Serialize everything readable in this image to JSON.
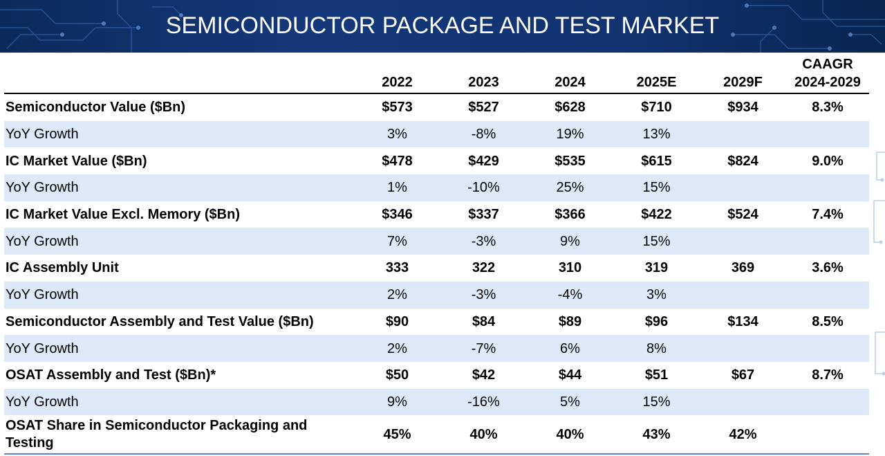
{
  "title": "SEMICONDUCTOR PACKAGE AND TEST MARKET",
  "colors": {
    "banner": "#14387a",
    "growth_row": "#dde9f8",
    "bottom_rule": "#5c87c4"
  },
  "columns": [
    "2022",
    "2023",
    "2024",
    "2025E",
    "2029F"
  ],
  "cagr_header": {
    "line1": "CAAGR",
    "line2": "2024-2029"
  },
  "rows": [
    {
      "label": "Semiconductor Value ($Bn)",
      "values": [
        "$573",
        "$527",
        "$628",
        "$710",
        "$934"
      ],
      "cagr": "8.3%"
    },
    {
      "label": "YoY Growth",
      "values": [
        "3%",
        "-8%",
        "19%",
        "13%",
        ""
      ],
      "cagr": ""
    },
    {
      "label": "IC Market Value ($Bn)",
      "values": [
        "$478",
        "$429",
        "$535",
        "$615",
        "$824"
      ],
      "cagr": "9.0%"
    },
    {
      "label": "YoY Growth",
      "values": [
        "1%",
        "-10%",
        "25%",
        "15%",
        ""
      ],
      "cagr": ""
    },
    {
      "label": "IC Market Value Excl. Memory ($Bn)",
      "values": [
        "$346",
        "$337",
        "$366",
        "$422",
        "$524"
      ],
      "cagr": "7.4%"
    },
    {
      "label": "YoY Growth",
      "values": [
        "7%",
        "-3%",
        "9%",
        "15%",
        ""
      ],
      "cagr": ""
    },
    {
      "label": "IC Assembly Unit",
      "values": [
        "333",
        "322",
        "310",
        "319",
        "369"
      ],
      "cagr": "3.6%"
    },
    {
      "label": "YoY Growth",
      "values": [
        "2%",
        "-3%",
        "-4%",
        "3%",
        ""
      ],
      "cagr": ""
    },
    {
      "label": "Semiconductor Assembly and Test Value ($Bn)",
      "values": [
        "$90",
        "$84",
        "$89",
        "$96",
        "$134"
      ],
      "cagr": "8.5%"
    },
    {
      "label": "YoY Growth",
      "values": [
        "2%",
        "-7%",
        "6%",
        "8%",
        ""
      ],
      "cagr": ""
    },
    {
      "label": "OSAT Assembly and Test ($Bn)*",
      "values": [
        "$50",
        "$42",
        "$44",
        "$51",
        "$67"
      ],
      "cagr": "8.7%"
    },
    {
      "label": "YoY Growth",
      "values": [
        "9%",
        "-16%",
        "5%",
        "15%",
        ""
      ],
      "cagr": ""
    },
    {
      "label": "OSAT Share in Semiconductor Packaging and Testing",
      "values": [
        "45%",
        "40%",
        "40%",
        "43%",
        "42%"
      ],
      "cagr": ""
    }
  ]
}
